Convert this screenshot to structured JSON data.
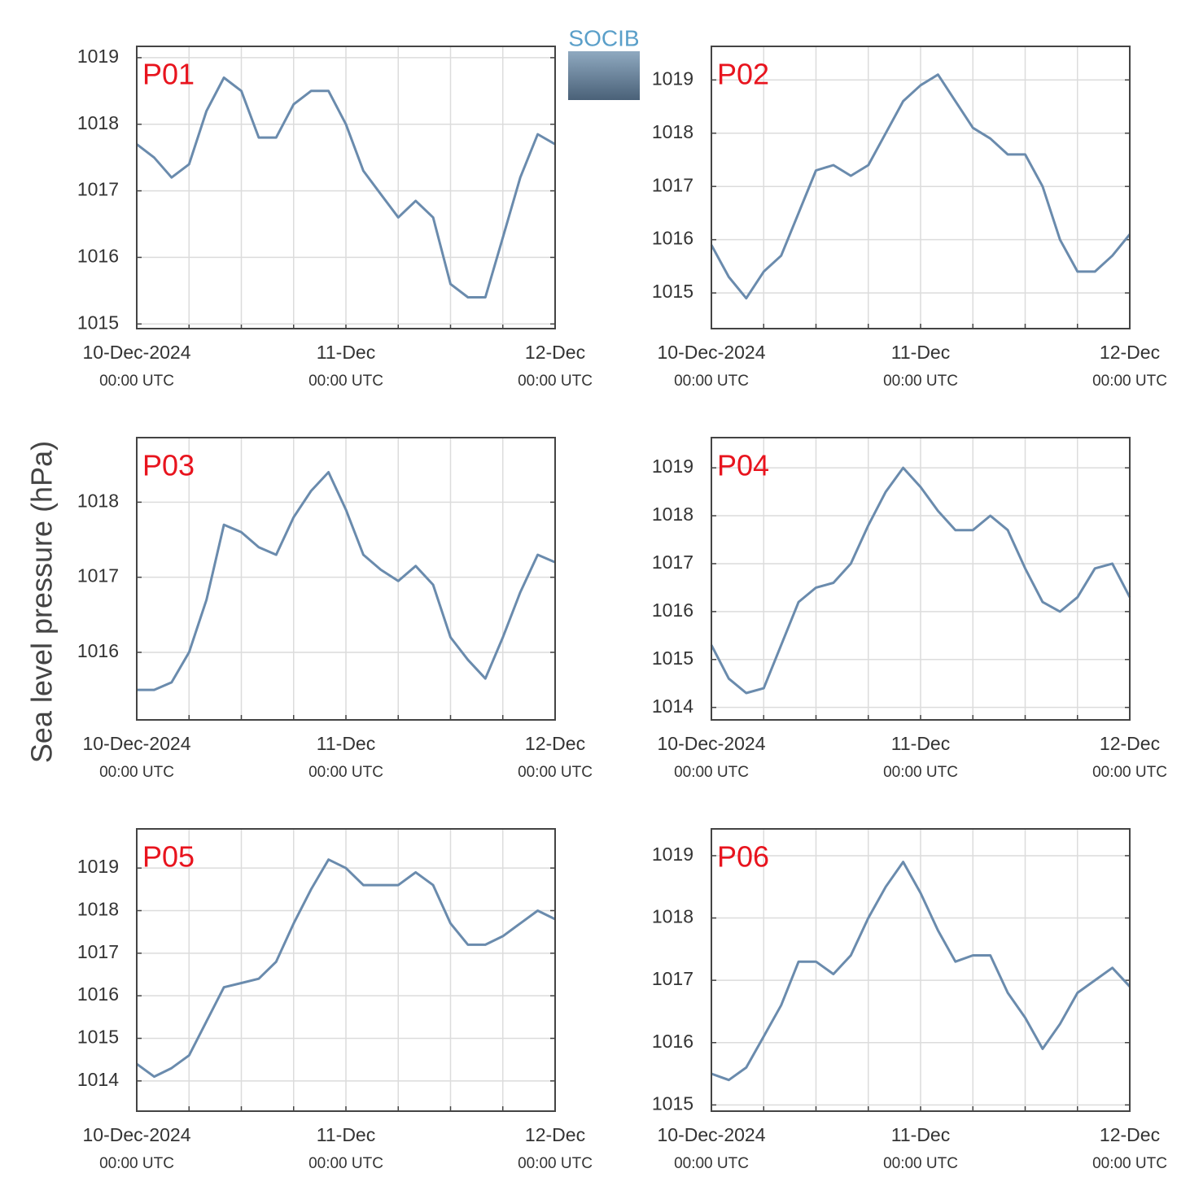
{
  "ylabel": "Sea level pressure (hPa)",
  "logo": "SOCIB",
  "chart_data": [
    {
      "type": "line",
      "title": "P01",
      "color": "#6a8bad",
      "grid": true,
      "x": [
        0,
        2,
        4,
        6,
        8,
        10,
        12,
        14,
        16,
        18,
        20,
        22,
        24,
        26,
        28,
        30,
        32,
        34,
        36,
        38,
        40,
        42,
        44,
        46,
        48
      ],
      "values": [
        1017.7,
        1017.5,
        1017.2,
        1017.4,
        1018.2,
        1018.7,
        1018.5,
        1017.8,
        1017.8,
        1018.3,
        1018.5,
        1018.5,
        1018.0,
        1017.3,
        1016.95,
        1016.6,
        1016.85,
        1016.6,
        1015.6,
        1015.4,
        1015.4,
        1016.3,
        1017.2,
        1017.85,
        1017.7
      ],
      "xlim": [
        0,
        48
      ],
      "xticks": [
        {
          "value": 0,
          "label": "10-Dec-2024"
        },
        {
          "value": 24,
          "label": "11-Dec"
        },
        {
          "value": 48,
          "label": "12-Dec"
        }
      ],
      "xtick_sublabels": [
        "00:00 UTC",
        "00:00 UTC",
        "00:00 UTC"
      ],
      "xminor_ticks": [
        6,
        12,
        18,
        30,
        36,
        42
      ],
      "ylim": [
        1014.93,
        1019.17
      ],
      "yticks": [
        1015,
        1016,
        1017,
        1018,
        1019
      ]
    },
    {
      "type": "line",
      "title": "P02",
      "color": "#6a8bad",
      "grid": true,
      "x": [
        0,
        2,
        4,
        6,
        8,
        10,
        12,
        14,
        16,
        18,
        20,
        22,
        24,
        26,
        28,
        30,
        32,
        34,
        36,
        38,
        40,
        42,
        44,
        46,
        48
      ],
      "values": [
        1015.9,
        1015.3,
        1014.9,
        1015.4,
        1015.7,
        1016.5,
        1017.3,
        1017.4,
        1017.2,
        1017.4,
        1018.0,
        1018.6,
        1018.9,
        1019.1,
        1018.6,
        1018.1,
        1017.9,
        1017.6,
        1017.6,
        1017.0,
        1016.0,
        1015.4,
        1015.4,
        1015.7,
        1016.1
      ],
      "xlim": [
        0,
        48
      ],
      "xticks": [
        {
          "value": 0,
          "label": "10-Dec-2024"
        },
        {
          "value": 24,
          "label": "11-Dec"
        },
        {
          "value": 48,
          "label": "12-Dec"
        }
      ],
      "xtick_sublabels": [
        "00:00 UTC",
        "00:00 UTC",
        "00:00 UTC"
      ],
      "xminor_ticks": [
        6,
        12,
        18,
        30,
        36,
        42
      ],
      "ylim": [
        1014.33,
        1019.63
      ],
      "yticks": [
        1015,
        1016,
        1017,
        1018,
        1019
      ]
    },
    {
      "type": "line",
      "title": "P03",
      "color": "#6a8bad",
      "grid": true,
      "x": [
        0,
        2,
        4,
        6,
        8,
        10,
        12,
        14,
        16,
        18,
        20,
        22,
        24,
        26,
        28,
        30,
        32,
        34,
        36,
        38,
        40,
        42,
        44,
        46,
        48
      ],
      "values": [
        1015.5,
        1015.5,
        1015.6,
        1016.0,
        1016.7,
        1017.7,
        1017.6,
        1017.4,
        1017.3,
        1017.8,
        1018.15,
        1018.4,
        1017.9,
        1017.3,
        1017.1,
        1016.95,
        1017.15,
        1016.9,
        1016.2,
        1015.9,
        1015.65,
        1016.2,
        1016.8,
        1017.3,
        1017.2
      ],
      "xlim": [
        0,
        48
      ],
      "xticks": [
        {
          "value": 0,
          "label": "10-Dec-2024"
        },
        {
          "value": 24,
          "label": "11-Dec"
        },
        {
          "value": 48,
          "label": "12-Dec"
        }
      ],
      "xtick_sublabels": [
        "00:00 UTC",
        "00:00 UTC",
        "00:00 UTC"
      ],
      "xminor_ticks": [
        6,
        12,
        18,
        30,
        36,
        42
      ],
      "ylim": [
        1015.1,
        1018.86
      ],
      "yticks": [
        1016,
        1017,
        1018
      ]
    },
    {
      "type": "line",
      "title": "P04",
      "color": "#6a8bad",
      "grid": true,
      "x": [
        0,
        2,
        4,
        6,
        8,
        10,
        12,
        14,
        16,
        18,
        20,
        22,
        24,
        26,
        28,
        30,
        32,
        34,
        36,
        38,
        40,
        42,
        44,
        46,
        48
      ],
      "values": [
        1015.3,
        1014.6,
        1014.3,
        1014.4,
        1015.3,
        1016.2,
        1016.5,
        1016.6,
        1017.0,
        1017.8,
        1018.5,
        1019.0,
        1018.6,
        1018.1,
        1017.7,
        1017.7,
        1018.0,
        1017.7,
        1016.9,
        1016.2,
        1016.0,
        1016.3,
        1016.9,
        1017.0,
        1016.3
      ],
      "xlim": [
        0,
        48
      ],
      "xticks": [
        {
          "value": 0,
          "label": "10-Dec-2024"
        },
        {
          "value": 24,
          "label": "11-Dec"
        },
        {
          "value": 48,
          "label": "12-Dec"
        }
      ],
      "xtick_sublabels": [
        "00:00 UTC",
        "00:00 UTC",
        "00:00 UTC"
      ],
      "xminor_ticks": [
        6,
        12,
        18,
        30,
        36,
        42
      ],
      "ylim": [
        1013.74,
        1019.63
      ],
      "yticks": [
        1014,
        1015,
        1016,
        1017,
        1018,
        1019
      ]
    },
    {
      "type": "line",
      "title": "P05",
      "color": "#6a8bad",
      "grid": true,
      "x": [
        0,
        2,
        4,
        6,
        8,
        10,
        12,
        14,
        16,
        18,
        20,
        22,
        24,
        26,
        28,
        30,
        32,
        34,
        36,
        38,
        40,
        42,
        44,
        46,
        48
      ],
      "values": [
        1014.4,
        1014.1,
        1014.3,
        1014.6,
        1015.4,
        1016.2,
        1016.3,
        1016.4,
        1016.8,
        1017.7,
        1018.5,
        1019.2,
        1019.0,
        1018.6,
        1018.6,
        1018.6,
        1018.9,
        1018.6,
        1017.7,
        1017.2,
        1017.2,
        1017.4,
        1017.7,
        1018.0,
        1017.8
      ],
      "xlim": [
        0,
        48
      ],
      "xticks": [
        {
          "value": 0,
          "label": "10-Dec-2024"
        },
        {
          "value": 24,
          "label": "11-Dec"
        },
        {
          "value": 48,
          "label": "12-Dec"
        }
      ],
      "xtick_sublabels": [
        "00:00 UTC",
        "00:00 UTC",
        "00:00 UTC"
      ],
      "xminor_ticks": [
        6,
        12,
        18,
        30,
        36,
        42
      ],
      "ylim": [
        1013.29,
        1019.92
      ],
      "yticks": [
        1014,
        1015,
        1016,
        1017,
        1018,
        1019
      ]
    },
    {
      "type": "line",
      "title": "P06",
      "color": "#6a8bad",
      "grid": true,
      "x": [
        0,
        2,
        4,
        6,
        8,
        10,
        12,
        14,
        16,
        18,
        20,
        22,
        24,
        26,
        28,
        30,
        32,
        34,
        36,
        38,
        40,
        42,
        44,
        46,
        48
      ],
      "values": [
        1015.5,
        1015.4,
        1015.6,
        1016.1,
        1016.6,
        1017.3,
        1017.3,
        1017.1,
        1017.4,
        1018.0,
        1018.5,
        1018.9,
        1018.4,
        1017.8,
        1017.3,
        1017.4,
        1017.4,
        1016.8,
        1016.4,
        1015.9,
        1016.3,
        1016.8,
        1017.0,
        1017.2,
        1016.9
      ],
      "xlim": [
        0,
        48
      ],
      "xticks": [
        {
          "value": 0,
          "label": "10-Dec-2024"
        },
        {
          "value": 24,
          "label": "11-Dec"
        },
        {
          "value": 48,
          "label": "12-Dec"
        }
      ],
      "xtick_sublabels": [
        "00:00 UTC",
        "00:00 UTC",
        "00:00 UTC"
      ],
      "xminor_ticks": [
        6,
        12,
        18,
        30,
        36,
        42
      ],
      "ylim": [
        1014.9,
        1019.43
      ],
      "yticks": [
        1015,
        1016,
        1017,
        1018,
        1019
      ]
    }
  ]
}
